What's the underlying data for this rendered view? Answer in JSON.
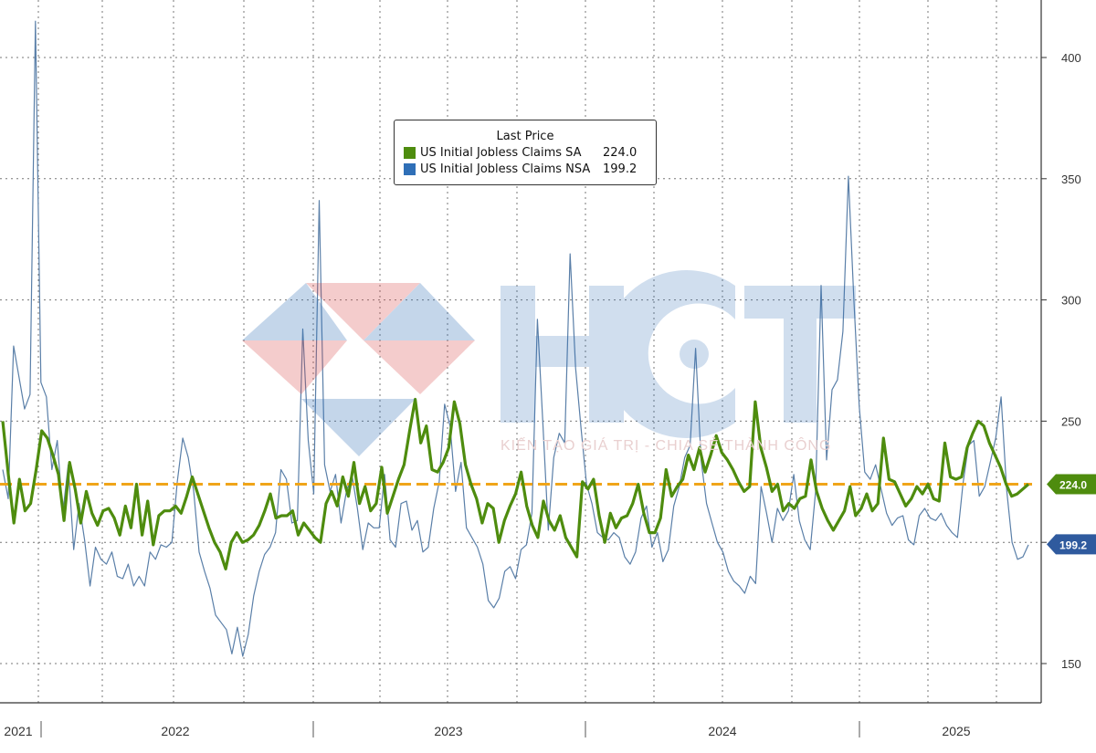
{
  "chart_data": {
    "type": "line",
    "ylim": [
      135,
      425
    ],
    "yticks": [
      150,
      200,
      250,
      300,
      350,
      400
    ],
    "x_labels": [
      "2021",
      "2022",
      "2023",
      "2024",
      "2025"
    ],
    "legend": {
      "title": "Last Price",
      "position": "top-center"
    },
    "series": [
      {
        "name": "US Initial Jobless Claims SA",
        "color": "#4e8c0e",
        "last_value": "224.0",
        "values": [
          250,
          228,
          208,
          226,
          213,
          216,
          230,
          246,
          243,
          236,
          228,
          209,
          233,
          222,
          208,
          221,
          212,
          207,
          213,
          214,
          210,
          203,
          215,
          206,
          224,
          203,
          217,
          199,
          211,
          213,
          213,
          215,
          212,
          219,
          227,
          220,
          213,
          206,
          200,
          196,
          189,
          200,
          204,
          200,
          201,
          203,
          207,
          213,
          220,
          210,
          211,
          211,
          213,
          203,
          208,
          205,
          202,
          200,
          216,
          221,
          215,
          227,
          219,
          233,
          216,
          223,
          213,
          216,
          231,
          212,
          219,
          226,
          232,
          246,
          259,
          241,
          248,
          230,
          229,
          233,
          239,
          258,
          249,
          232,
          224,
          218,
          208,
          216,
          214,
          200,
          209,
          215,
          220,
          229,
          215,
          207,
          202,
          217,
          209,
          205,
          211,
          202,
          198,
          194,
          225,
          222,
          226,
          211,
          200,
          212,
          206,
          210,
          211,
          216,
          224,
          212,
          204,
          204,
          210,
          230,
          219,
          223,
          226,
          236,
          230,
          239,
          229,
          236,
          244,
          237,
          234,
          230,
          225,
          221,
          223,
          258,
          239,
          231,
          221,
          224,
          213,
          216,
          214,
          218,
          219,
          234,
          221,
          214,
          209,
          205,
          209,
          213,
          223,
          211,
          214,
          220,
          213,
          216,
          243,
          226,
          225,
          220,
          215,
          218,
          223,
          220,
          224,
          218,
          217,
          241,
          227,
          226,
          227,
          239,
          245,
          250,
          248,
          241,
          236,
          231,
          224,
          219,
          220,
          222,
          224
        ]
      },
      {
        "name": "US Initial Jobless Claims NSA",
        "color": "#5a7fa8",
        "last_value": "199.2",
        "values": [
          230,
          218,
          281,
          268,
          255,
          261,
          415,
          266,
          260,
          230,
          242,
          212,
          232,
          197,
          216,
          201,
          182,
          198,
          193,
          191,
          196,
          186,
          185,
          191,
          182,
          186,
          182,
          196,
          193,
          199,
          198,
          200,
          225,
          243,
          235,
          221,
          196,
          188,
          181,
          170,
          167,
          164,
          154,
          165,
          153,
          162,
          178,
          188,
          195,
          198,
          204,
          230,
          226,
          208,
          209,
          288,
          242,
          220,
          341,
          232,
          221,
          228,
          208,
          221,
          228,
          214,
          197,
          208,
          206,
          206,
          228,
          201,
          198,
          216,
          217,
          205,
          209,
          196,
          198,
          214,
          225,
          257,
          248,
          221,
          233,
          206,
          202,
          198,
          191,
          176,
          173,
          177,
          188,
          190,
          185,
          197,
          199,
          212,
          292,
          249,
          205,
          235,
          245,
          241,
          319,
          272,
          247,
          224,
          216,
          204,
          202,
          201,
          204,
          202,
          194,
          191,
          196,
          210,
          215,
          198,
          204,
          192,
          197,
          215,
          223,
          235,
          240,
          280,
          234,
          216,
          208,
          200,
          196,
          188,
          184,
          182,
          179,
          186,
          183,
          223,
          212,
          200,
          214,
          209,
          213,
          228,
          209,
          201,
          197,
          221,
          306,
          234,
          263,
          267,
          287,
          351,
          300,
          256,
          229,
          226,
          232,
          222,
          212,
          207,
          210,
          211,
          201,
          199,
          211,
          214,
          210,
          209,
          212,
          207,
          204,
          202,
          224,
          240,
          242,
          219,
          223,
          233,
          243,
          260,
          222,
          200,
          193,
          194,
          199
        ]
      }
    ],
    "reference_line": {
      "value": 224,
      "color": "#f0a519"
    },
    "value_tags": [
      {
        "text": "224.0",
        "value": 224,
        "color": "#4e8c0e"
      },
      {
        "text": "199.2",
        "value": 199.2,
        "color": "#2f5a9e"
      }
    ]
  },
  "watermark": {
    "brand": "HCT",
    "tagline": "KIẾN TẠO GIÁ TRỊ - CHIA SẺ THÀNH CÔNG"
  }
}
